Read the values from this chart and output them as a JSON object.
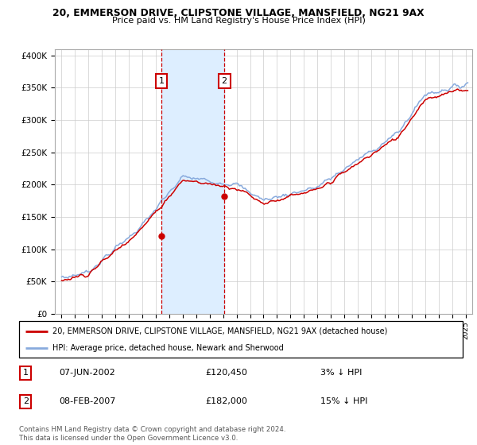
{
  "title": "20, EMMERSON DRIVE, CLIPSTONE VILLAGE, MANSFIELD, NG21 9AX",
  "subtitle": "Price paid vs. HM Land Registry's House Price Index (HPI)",
  "hpi_label": "HPI: Average price, detached house, Newark and Sherwood",
  "property_label": "20, EMMERSON DRIVE, CLIPSTONE VILLAGE, MANSFIELD, NG21 9AX (detached house)",
  "transaction1_date": "07-JUN-2002",
  "transaction1_price": 120450,
  "transaction1_hpi": "3% ↓ HPI",
  "transaction2_date": "08-FEB-2007",
  "transaction2_price": 182000,
  "transaction2_hpi": "15% ↓ HPI",
  "footnote": "Contains HM Land Registry data © Crown copyright and database right 2024.\nThis data is licensed under the Open Government Licence v3.0.",
  "hpi_color": "#88aadd",
  "property_color": "#cc0000",
  "shade_color": "#ddeeff",
  "ylim": [
    0,
    410000
  ],
  "yticks": [
    0,
    50000,
    100000,
    150000,
    200000,
    250000,
    300000,
    350000,
    400000
  ],
  "ytick_labels": [
    "£0",
    "£50K",
    "£100K",
    "£150K",
    "£200K",
    "£250K",
    "£300K",
    "£350K",
    "£400K"
  ]
}
